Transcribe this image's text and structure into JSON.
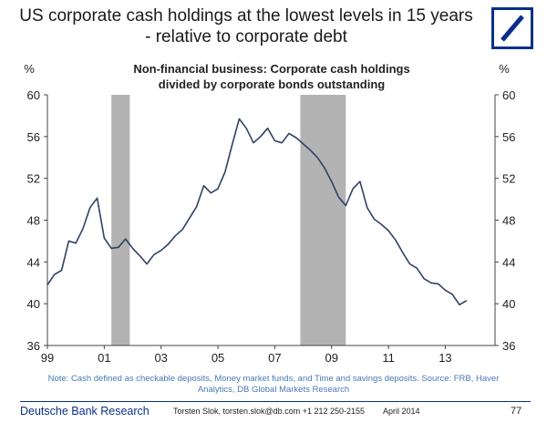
{
  "header": {
    "title_line1": "US corporate cash holdings at the lowest levels in 15 years",
    "title_line2": "- relative to corporate debt"
  },
  "logo": {
    "name": "deutsche-bank-logo",
    "color": "#0a2f8a"
  },
  "chart_data": {
    "type": "line",
    "title_line1": "Non-financial business: Corporate cash holdings",
    "title_line2": "divided by corporate bonds outstanding",
    "left_unit": "%",
    "right_unit": "%",
    "ylim": [
      36,
      60
    ],
    "yticks": [
      36,
      40,
      44,
      48,
      52,
      56,
      60
    ],
    "xlim": [
      1999.0,
      2014.75
    ],
    "xticks": [
      {
        "value": 1999,
        "label": "99"
      },
      {
        "value": 2001,
        "label": "01"
      },
      {
        "value": 2003,
        "label": "03"
      },
      {
        "value": 2005,
        "label": "05"
      },
      {
        "value": 2007,
        "label": "07"
      },
      {
        "value": 2009,
        "label": "09"
      },
      {
        "value": 2011,
        "label": "11"
      },
      {
        "value": 2013,
        "label": "13"
      }
    ],
    "recessions": [
      {
        "start": 2001.25,
        "end": 2001.9
      },
      {
        "start": 2007.9,
        "end": 2009.5
      }
    ],
    "colors": {
      "line": "#2f4166",
      "recession": "#b3b3b3",
      "axis": "#444444"
    },
    "grid": false,
    "series": [
      {
        "x": [
          1999.0,
          1999.25,
          1999.5,
          1999.75,
          2000.0,
          2000.25,
          2000.5,
          2000.75,
          2001.0,
          2001.25,
          2001.5,
          2001.75,
          2002.0,
          2002.25,
          2002.5,
          2002.75,
          2003.0,
          2003.25,
          2003.5,
          2003.75,
          2004.0,
          2004.25,
          2004.5,
          2004.75,
          2005.0,
          2005.25,
          2005.5,
          2005.75,
          2006.0,
          2006.25,
          2006.5,
          2006.75,
          2007.0,
          2007.25,
          2007.5,
          2007.75,
          2008.0,
          2008.25,
          2008.5,
          2008.75,
          2009.0,
          2009.25,
          2009.5,
          2009.75,
          2010.0,
          2010.25,
          2010.5,
          2010.75,
          2011.0,
          2011.25,
          2011.5,
          2011.75,
          2012.0,
          2012.25,
          2012.5,
          2012.75,
          2013.0,
          2013.25,
          2013.5,
          2013.75
        ],
        "y": [
          41.8,
          42.8,
          43.2,
          46.0,
          45.8,
          47.2,
          49.2,
          50.1,
          46.3,
          45.3,
          45.4,
          46.2,
          45.3,
          44.6,
          43.8,
          44.7,
          45.1,
          45.7,
          46.5,
          47.1,
          48.2,
          49.3,
          51.3,
          50.6,
          51.0,
          52.6,
          55.2,
          57.7,
          56.8,
          55.4,
          56.0,
          56.8,
          55.6,
          55.4,
          56.3,
          55.9,
          55.3,
          54.7,
          54.0,
          53.0,
          51.7,
          50.2,
          49.4,
          51.0,
          51.7,
          49.2,
          48.1,
          47.6,
          47.0,
          46.1,
          44.9,
          43.8,
          43.4,
          42.4,
          42.0,
          41.9,
          41.3,
          40.9,
          39.9,
          40.3
        ]
      }
    ]
  },
  "note": {
    "line1": "Note: Cash defined as checkable deposits, Money market funds, and Time and savings deposits. Source: FRB, Haver",
    "line2": "Analytics, DB Global Markets Research"
  },
  "footer": {
    "brand": "Deutsche Bank Research",
    "author": "Torsten Slok, torsten.slok@db.com +1 212 250-2155",
    "date": "April 2014",
    "page": "77"
  }
}
